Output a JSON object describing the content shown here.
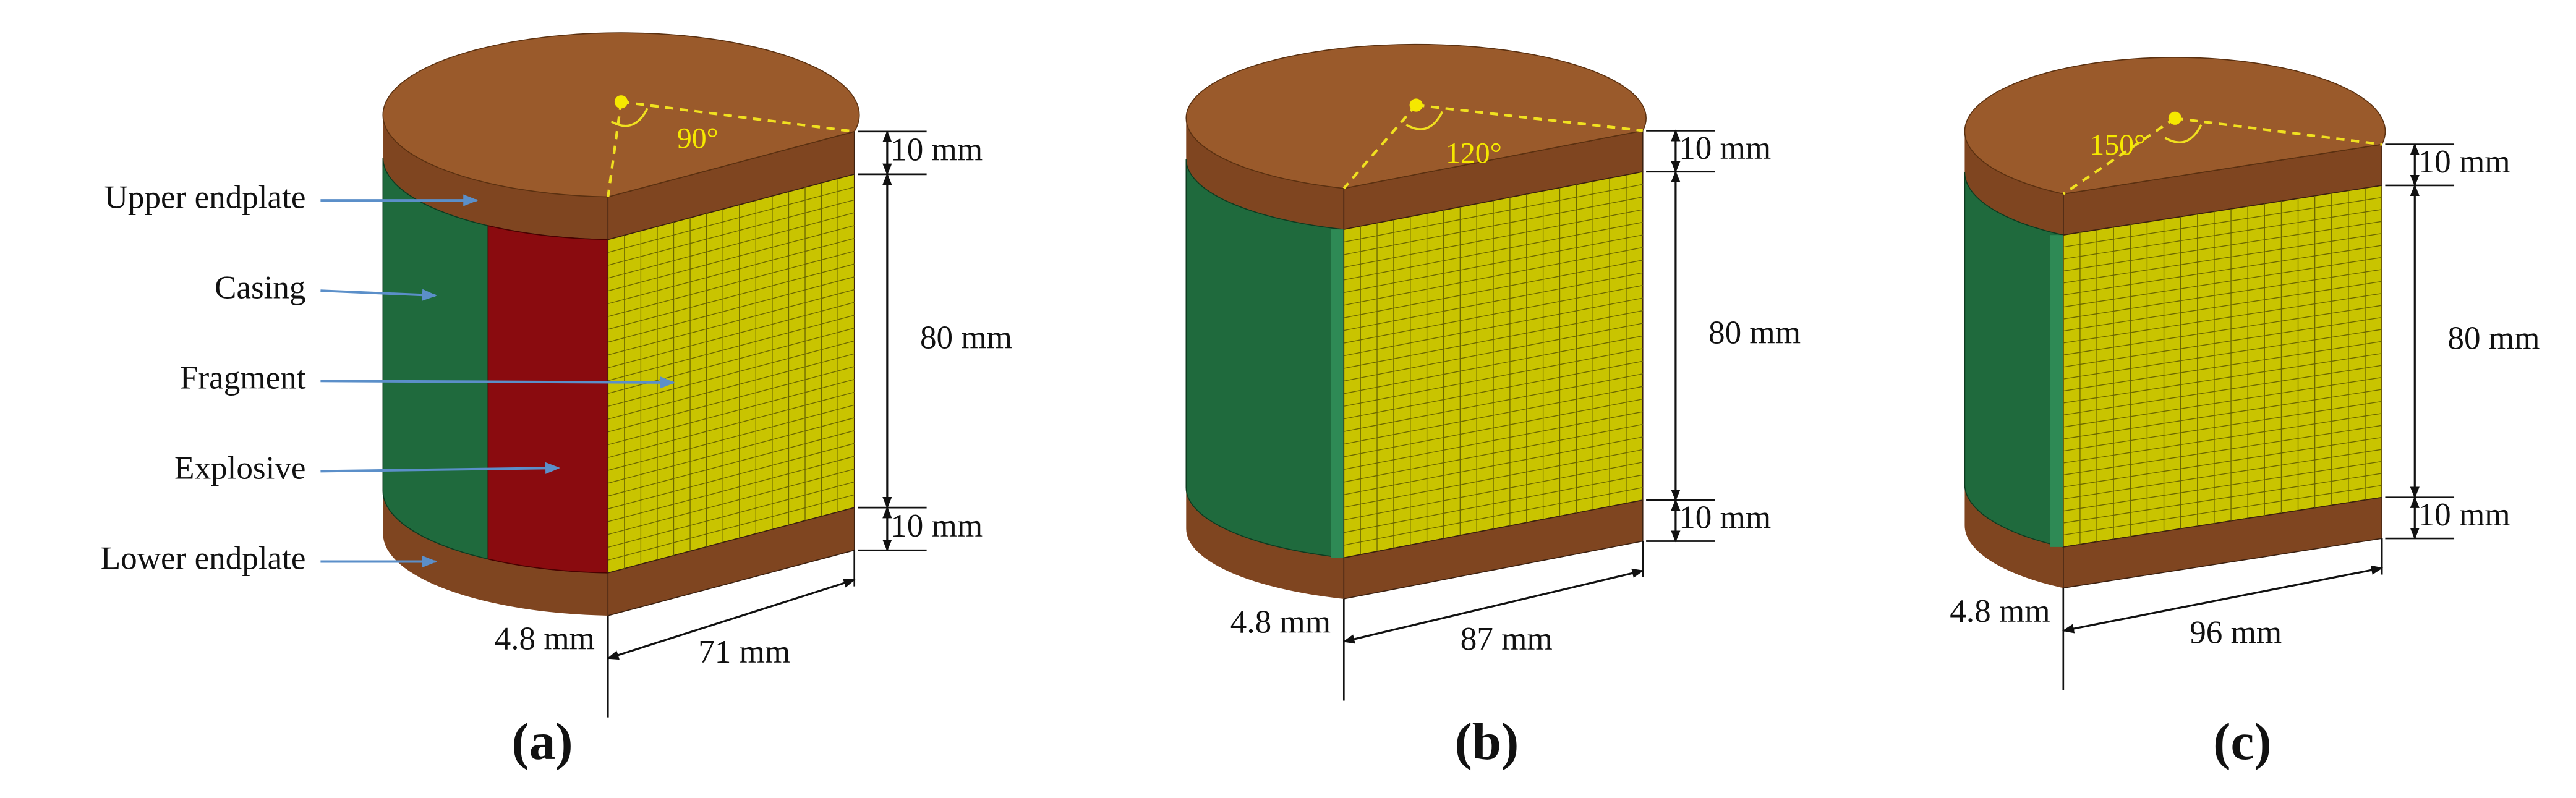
{
  "component_labels": [
    "Upper endplate",
    "Casing",
    "Fragment",
    "Explosive",
    "Lower endplate"
  ],
  "panels": [
    {
      "label": "(a)",
      "angle": "90°",
      "upper_endplate": "10 mm",
      "height": "80 mm",
      "lower_endplate": "10 mm",
      "casing_thickness": "4.8 mm",
      "width": "71 mm"
    },
    {
      "label": "(b)",
      "angle": "120°",
      "upper_endplate": "10 mm",
      "height": "80 mm",
      "lower_endplate": "10 mm",
      "casing_thickness": "4.8 mm",
      "width": "87 mm"
    },
    {
      "label": "(c)",
      "angle": "150°",
      "upper_endplate": "10 mm",
      "height": "80 mm",
      "lower_endplate": "10 mm",
      "casing_thickness": "4.8 mm",
      "width": "96 mm"
    }
  ]
}
